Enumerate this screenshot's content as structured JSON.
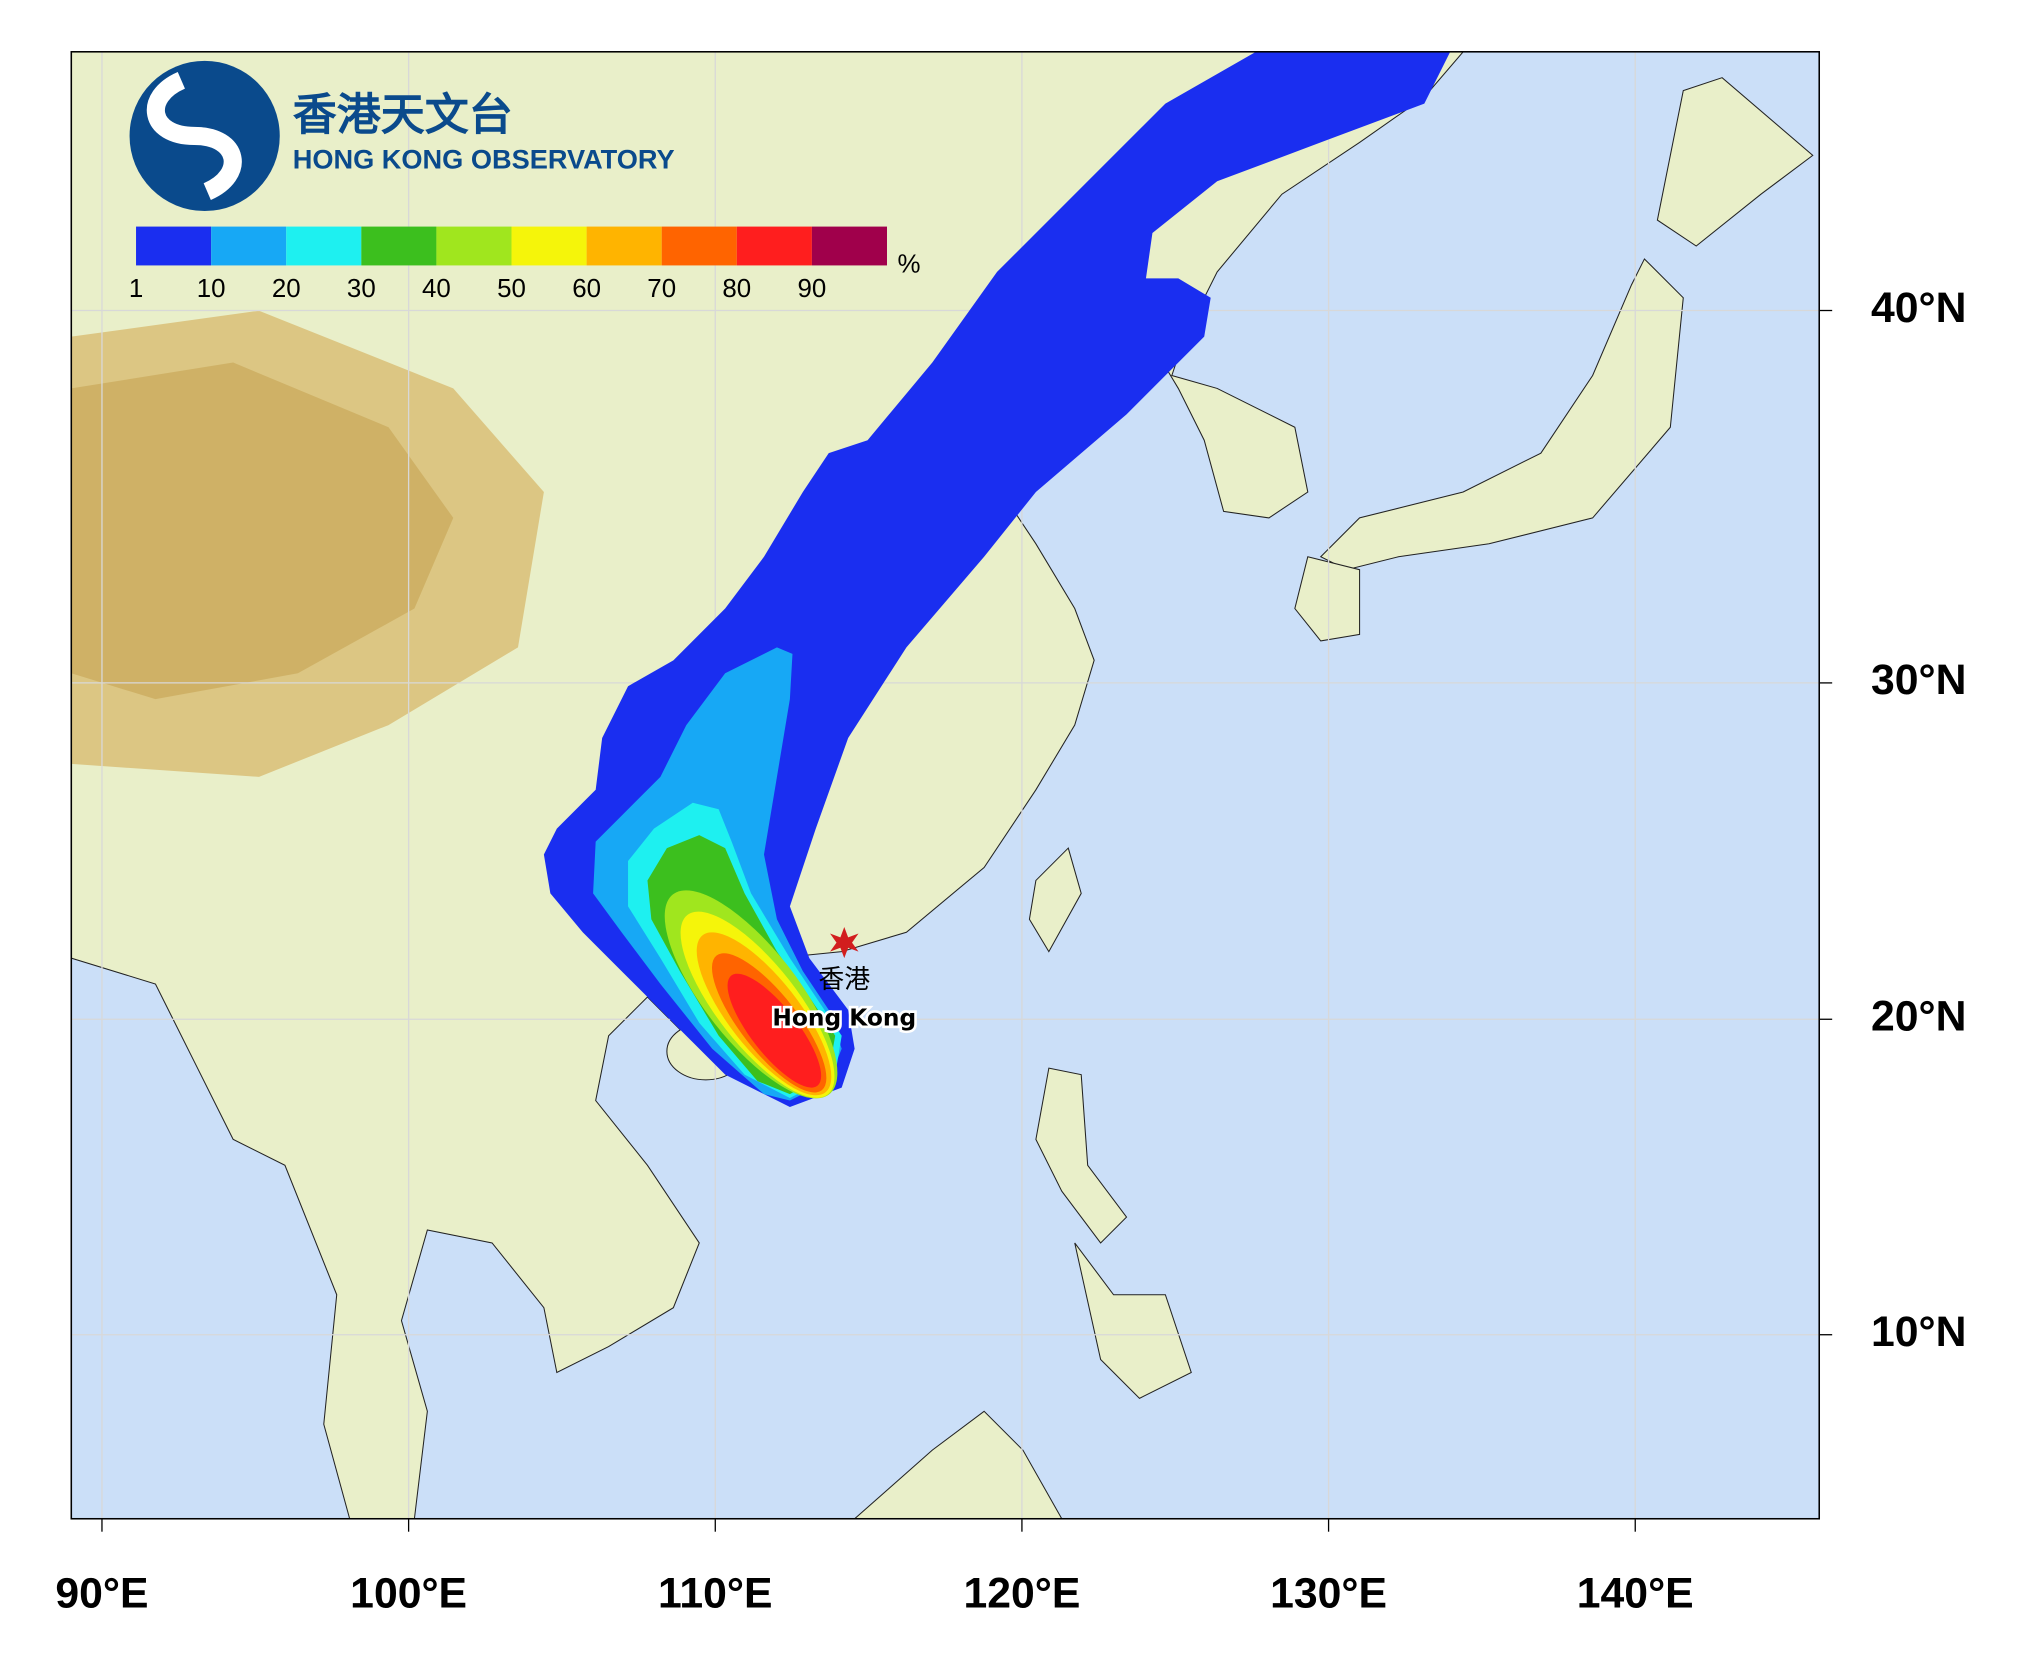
{
  "map": {
    "logo": {
      "chinese": "香港天文台",
      "english": "HONG KONG OBSERVATORY"
    },
    "colorbar": {
      "levels": [
        1,
        10,
        20,
        30,
        40,
        50,
        60,
        70,
        80,
        90
      ],
      "colors": [
        "#1a2ef0",
        "#17a8f5",
        "#1ef0f0",
        "#3cbf1e",
        "#a0e61e",
        "#f5f50a",
        "#ffb400",
        "#ff6400",
        "#ff1e1e",
        "#a0004b"
      ],
      "unit": "%"
    },
    "location": {
      "chinese": "香港",
      "english": "Hong Kong"
    },
    "xlim": [
      89,
      146
    ],
    "ylim": [
      4,
      46.2
    ],
    "xticks": [
      {
        "value": 90,
        "label": "90°E"
      },
      {
        "value": 100,
        "label": "100°E"
      },
      {
        "value": 110,
        "label": "110°E"
      },
      {
        "value": 120,
        "label": "120°E"
      },
      {
        "value": 130,
        "label": "130°E"
      },
      {
        "value": 140,
        "label": "140°E"
      }
    ],
    "yticks": [
      {
        "value": 10,
        "label": "10°N"
      },
      {
        "value": 20,
        "label": "20°N"
      },
      {
        "value": 30,
        "label": "30°N"
      },
      {
        "value": 40,
        "label": "40°N"
      }
    ],
    "grid": true
  }
}
